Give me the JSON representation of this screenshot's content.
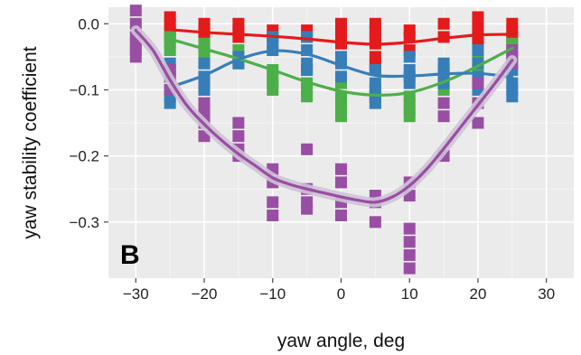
{
  "chart_data": {
    "type": "scatter",
    "panel_label": "B",
    "xlabel": "yaw angle, deg",
    "ylabel": "yaw stability coefficient",
    "xlim": [
      -34,
      34
    ],
    "ylim": [
      -0.385,
      0.025
    ],
    "x_ticks": [
      -30,
      -20,
      -10,
      0,
      10,
      20,
      30
    ],
    "y_ticks": [
      0.0,
      -0.1,
      -0.2,
      -0.3
    ],
    "x_tick_labels": [
      "−30",
      "−20",
      "−10",
      "0",
      "10",
      "20",
      "30"
    ],
    "y_tick_labels": [
      "0.0",
      "−0.1",
      "−0.2",
      "−0.3"
    ],
    "grid": true,
    "background": "#ebebeb",
    "series": [
      {
        "color": "#e41a1c",
        "points": [
          [
            -25,
            0.01
          ],
          [
            -25,
            0.0
          ],
          [
            -25,
            -0.01
          ],
          [
            -25,
            -0.02
          ],
          [
            -20,
            -0.0
          ],
          [
            -20,
            -0.01
          ],
          [
            -20,
            -0.02
          ],
          [
            -20,
            -0.03
          ],
          [
            -15,
            -0.0
          ],
          [
            -15,
            -0.01
          ],
          [
            -15,
            -0.02
          ],
          [
            -10,
            -0.01
          ],
          [
            -10,
            -0.02
          ],
          [
            -5,
            -0.01
          ],
          [
            -5,
            -0.02
          ],
          [
            0,
            0.0
          ],
          [
            0,
            -0.01
          ],
          [
            0,
            -0.02
          ],
          [
            0,
            -0.03
          ],
          [
            5,
            -0.0
          ],
          [
            5,
            -0.01
          ],
          [
            5,
            -0.02
          ],
          [
            5,
            -0.03
          ],
          [
            5,
            -0.05
          ],
          [
            5,
            -0.06
          ],
          [
            5,
            -0.07
          ],
          [
            10,
            -0.01
          ],
          [
            10,
            -0.02
          ],
          [
            10,
            -0.04
          ],
          [
            15,
            -0.0
          ],
          [
            15,
            -0.02
          ],
          [
            20,
            0.01
          ],
          [
            20,
            -0.0
          ],
          [
            20,
            -0.01
          ],
          [
            20,
            -0.02
          ],
          [
            20,
            -0.03
          ],
          [
            25,
            0.0
          ],
          [
            25,
            -0.01
          ],
          [
            25,
            -0.02
          ],
          [
            25,
            -0.03
          ]
        ],
        "fit": [
          [
            -25,
            -0.009
          ],
          [
            -20,
            -0.013
          ],
          [
            -15,
            -0.016
          ],
          [
            -10,
            -0.019
          ],
          [
            -5,
            -0.023
          ],
          [
            0,
            -0.028
          ],
          [
            5,
            -0.031
          ],
          [
            10,
            -0.028
          ],
          [
            15,
            -0.022
          ],
          [
            20,
            -0.017
          ],
          [
            25,
            -0.016
          ]
        ]
      },
      {
        "color": "#4daf4a",
        "points": [
          [
            -25,
            -0.02
          ],
          [
            -25,
            -0.03
          ],
          [
            -25,
            -0.04
          ],
          [
            -20,
            -0.03
          ],
          [
            -20,
            -0.04
          ],
          [
            -20,
            -0.05
          ],
          [
            -20,
            -0.06
          ],
          [
            -15,
            -0.04
          ],
          [
            -15,
            -0.06
          ],
          [
            -10,
            -0.07
          ],
          [
            -10,
            -0.08
          ],
          [
            -10,
            -0.09
          ],
          [
            -10,
            -0.1
          ],
          [
            -5,
            -0.07
          ],
          [
            -5,
            -0.09
          ],
          [
            -5,
            -0.1
          ],
          [
            -5,
            -0.11
          ],
          [
            0,
            -0.09
          ],
          [
            0,
            -0.11
          ],
          [
            0,
            -0.12
          ],
          [
            0,
            -0.13
          ],
          [
            0,
            -0.14
          ],
          [
            5,
            -0.1
          ],
          [
            5,
            -0.11
          ],
          [
            5,
            -0.12
          ],
          [
            10,
            -0.11
          ],
          [
            10,
            -0.12
          ],
          [
            10,
            -0.13
          ],
          [
            10,
            -0.14
          ],
          [
            15,
            -0.08
          ],
          [
            15,
            -0.1
          ],
          [
            20,
            -0.05
          ],
          [
            20,
            -0.06
          ],
          [
            20,
            -0.07
          ],
          [
            25,
            -0.03
          ],
          [
            25,
            -0.04
          ],
          [
            25,
            -0.05
          ]
        ],
        "fit": [
          [
            -25,
            -0.023
          ],
          [
            -20,
            -0.038
          ],
          [
            -15,
            -0.053
          ],
          [
            -10,
            -0.07
          ],
          [
            -5,
            -0.088
          ],
          [
            0,
            -0.102
          ],
          [
            5,
            -0.108
          ],
          [
            10,
            -0.104
          ],
          [
            15,
            -0.088
          ],
          [
            20,
            -0.064
          ],
          [
            25,
            -0.037
          ]
        ]
      },
      {
        "color": "#377eb8",
        "points": [
          [
            -25,
            -0.06
          ],
          [
            -25,
            -0.07
          ],
          [
            -25,
            -0.08
          ],
          [
            -25,
            -0.1
          ],
          [
            -25,
            -0.11
          ],
          [
            -25,
            -0.12
          ],
          [
            -20,
            -0.06
          ],
          [
            -20,
            -0.08
          ],
          [
            -20,
            -0.09
          ],
          [
            -20,
            -0.1
          ],
          [
            -15,
            -0.05
          ],
          [
            -15,
            -0.06
          ],
          [
            -10,
            -0.02
          ],
          [
            -10,
            -0.03
          ],
          [
            -10,
            -0.04
          ],
          [
            -5,
            -0.02
          ],
          [
            -5,
            -0.04
          ],
          [
            -5,
            -0.06
          ],
          [
            -5,
            -0.07
          ],
          [
            0,
            -0.05
          ],
          [
            0,
            -0.06
          ],
          [
            0,
            -0.08
          ],
          [
            5,
            -0.07
          ],
          [
            5,
            -0.09
          ],
          [
            5,
            -0.1
          ],
          [
            5,
            -0.11
          ],
          [
            5,
            -0.12
          ],
          [
            10,
            -0.05
          ],
          [
            10,
            -0.07
          ],
          [
            10,
            -0.08
          ],
          [
            10,
            -0.09
          ],
          [
            15,
            -0.06
          ],
          [
            15,
            -0.07
          ],
          [
            15,
            -0.08
          ],
          [
            15,
            -0.09
          ],
          [
            20,
            -0.04
          ],
          [
            20,
            -0.06
          ],
          [
            20,
            -0.08
          ],
          [
            20,
            -0.1
          ],
          [
            25,
            -0.07
          ],
          [
            25,
            -0.09
          ],
          [
            25,
            -0.1
          ],
          [
            25,
            -0.11
          ]
        ],
        "fit": [
          [
            -25,
            -0.096
          ],
          [
            -20,
            -0.078
          ],
          [
            -15,
            -0.054
          ],
          [
            -10,
            -0.041
          ],
          [
            -5,
            -0.046
          ],
          [
            0,
            -0.063
          ],
          [
            5,
            -0.078
          ],
          [
            10,
            -0.079
          ],
          [
            15,
            -0.076
          ],
          [
            20,
            -0.075
          ],
          [
            25,
            -0.081
          ]
        ]
      },
      {
        "color": "#984ea3",
        "points": [
          [
            -30,
            0.02
          ],
          [
            -30,
            0.0
          ],
          [
            -30,
            -0.02
          ],
          [
            -30,
            -0.03
          ],
          [
            -30,
            -0.04
          ],
          [
            -30,
            -0.05
          ],
          [
            -25,
            -0.07
          ],
          [
            -25,
            -0.08
          ],
          [
            -25,
            -0.1
          ],
          [
            -20,
            -0.12
          ],
          [
            -20,
            -0.13
          ],
          [
            -20,
            -0.14
          ],
          [
            -20,
            -0.15
          ],
          [
            -20,
            -0.17
          ],
          [
            -15,
            -0.15
          ],
          [
            -15,
            -0.17
          ],
          [
            -15,
            -0.19
          ],
          [
            -15,
            -0.2
          ],
          [
            -10,
            -0.22
          ],
          [
            -10,
            -0.24
          ],
          [
            -10,
            -0.27
          ],
          [
            -10,
            -0.29
          ],
          [
            -5,
            -0.19
          ],
          [
            -5,
            -0.25
          ],
          [
            -5,
            -0.27
          ],
          [
            -5,
            -0.28
          ],
          [
            0,
            -0.22
          ],
          [
            0,
            -0.24
          ],
          [
            0,
            -0.27
          ],
          [
            0,
            -0.29
          ],
          [
            5,
            -0.26
          ],
          [
            5,
            -0.27
          ],
          [
            5,
            -0.3
          ],
          [
            10,
            -0.24
          ],
          [
            10,
            -0.26
          ],
          [
            10,
            -0.31
          ],
          [
            10,
            -0.33
          ],
          [
            10,
            -0.35
          ],
          [
            10,
            -0.37
          ],
          [
            15,
            -0.12
          ],
          [
            15,
            -0.14
          ],
          [
            15,
            -0.2
          ],
          [
            20,
            -0.09
          ],
          [
            20,
            -0.12
          ],
          [
            20,
            -0.15
          ],
          [
            25,
            -0.04
          ],
          [
            25,
            -0.05
          ],
          [
            25,
            -0.06
          ]
        ],
        "fit": [
          [
            -30,
            -0.01
          ],
          [
            -27.5,
            -0.04
          ],
          [
            -25,
            -0.085
          ],
          [
            -22.5,
            -0.124
          ],
          [
            -20,
            -0.152
          ],
          [
            -17.5,
            -0.176
          ],
          [
            -15,
            -0.197
          ],
          [
            -12.5,
            -0.215
          ],
          [
            -10,
            -0.233
          ],
          [
            -7.5,
            -0.243
          ],
          [
            -5,
            -0.25
          ],
          [
            -2.5,
            -0.256
          ],
          [
            0,
            -0.262
          ],
          [
            2.5,
            -0.267
          ],
          [
            5,
            -0.27
          ],
          [
            7.5,
            -0.262
          ],
          [
            10,
            -0.245
          ],
          [
            12.5,
            -0.22
          ],
          [
            15,
            -0.189
          ],
          [
            17.5,
            -0.156
          ],
          [
            20,
            -0.123
          ],
          [
            22.5,
            -0.09
          ],
          [
            25,
            -0.055
          ]
        ],
        "band": true
      }
    ]
  }
}
